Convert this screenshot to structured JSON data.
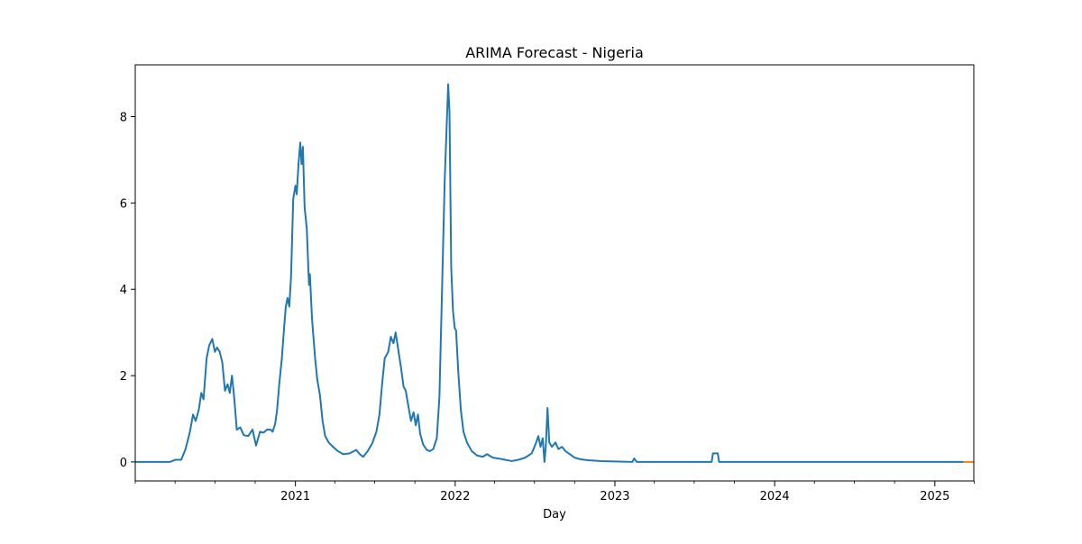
{
  "chart_data": {
    "type": "line",
    "title": "ARIMA Forecast - Nigeria",
    "xlabel": "Day",
    "ylabel": "",
    "x_range": [
      "2020-01-01",
      "2025-03-31"
    ],
    "ylim": [
      -0.44,
      9.2
    ],
    "x_ticks": [
      {
        "date": "2021-01-01",
        "label": "2021"
      },
      {
        "date": "2022-01-01",
        "label": "2022"
      },
      {
        "date": "2023-01-01",
        "label": "2023"
      },
      {
        "date": "2024-01-01",
        "label": "2024"
      },
      {
        "date": "2025-01-01",
        "label": "2025"
      }
    ],
    "x_minor_ticks": [
      "2020-01-01",
      "2020-04-01",
      "2020-07-01",
      "2020-10-01",
      "2021-04-01",
      "2021-07-01",
      "2021-10-01",
      "2022-04-01",
      "2022-07-01",
      "2022-10-01",
      "2023-04-01",
      "2023-07-01",
      "2023-10-01",
      "2024-04-01",
      "2024-07-01",
      "2024-10-01",
      "2025-04-01"
    ],
    "y_ticks": [
      0,
      2,
      4,
      6,
      8
    ],
    "grid": false,
    "series": [
      {
        "name": "",
        "color": "#1f77b4",
        "points": [
          [
            "2020-01-01",
            0.0
          ],
          [
            "2020-03-20",
            0.0
          ],
          [
            "2020-04-01",
            0.05
          ],
          [
            "2020-04-15",
            0.05
          ],
          [
            "2020-04-25",
            0.3
          ],
          [
            "2020-05-05",
            0.7
          ],
          [
            "2020-05-12",
            1.1
          ],
          [
            "2020-05-18",
            0.95
          ],
          [
            "2020-05-25",
            1.2
          ],
          [
            "2020-05-31",
            1.6
          ],
          [
            "2020-06-05",
            1.45
          ],
          [
            "2020-06-12",
            2.4
          ],
          [
            "2020-06-18",
            2.7
          ],
          [
            "2020-06-25",
            2.85
          ],
          [
            "2020-07-01",
            2.55
          ],
          [
            "2020-07-06",
            2.65
          ],
          [
            "2020-07-12",
            2.55
          ],
          [
            "2020-07-18",
            2.3
          ],
          [
            "2020-07-24",
            1.65
          ],
          [
            "2020-07-30",
            1.8
          ],
          [
            "2020-08-04",
            1.6
          ],
          [
            "2020-08-09",
            2.0
          ],
          [
            "2020-08-14",
            1.5
          ],
          [
            "2020-08-20",
            0.75
          ],
          [
            "2020-08-28",
            0.8
          ],
          [
            "2020-09-05",
            0.62
          ],
          [
            "2020-09-15",
            0.6
          ],
          [
            "2020-09-25",
            0.75
          ],
          [
            "2020-10-03",
            0.38
          ],
          [
            "2020-10-12",
            0.7
          ],
          [
            "2020-10-20",
            0.68
          ],
          [
            "2020-10-28",
            0.75
          ],
          [
            "2020-11-05",
            0.75
          ],
          [
            "2020-11-10",
            0.7
          ],
          [
            "2020-11-16",
            0.9
          ],
          [
            "2020-11-20",
            1.2
          ],
          [
            "2020-11-25",
            1.8
          ],
          [
            "2020-12-01",
            2.4
          ],
          [
            "2020-12-06",
            3.1
          ],
          [
            "2020-12-10",
            3.6
          ],
          [
            "2020-12-14",
            3.8
          ],
          [
            "2020-12-18",
            3.6
          ],
          [
            "2020-12-22",
            4.3
          ],
          [
            "2020-12-27",
            6.1
          ],
          [
            "2021-01-01",
            6.4
          ],
          [
            "2021-01-04",
            6.2
          ],
          [
            "2021-01-08",
            6.9
          ],
          [
            "2021-01-12",
            7.4
          ],
          [
            "2021-01-15",
            6.9
          ],
          [
            "2021-01-18",
            7.3
          ],
          [
            "2021-01-22",
            5.9
          ],
          [
            "2021-01-27",
            5.4
          ],
          [
            "2021-02-01",
            4.1
          ],
          [
            "2021-02-03",
            4.35
          ],
          [
            "2021-02-08",
            3.3
          ],
          [
            "2021-02-15",
            2.4
          ],
          [
            "2021-02-20",
            1.9
          ],
          [
            "2021-02-26",
            1.55
          ],
          [
            "2021-03-04",
            0.95
          ],
          [
            "2021-03-10",
            0.6
          ],
          [
            "2021-03-18",
            0.45
          ],
          [
            "2021-03-28",
            0.35
          ],
          [
            "2021-04-08",
            0.25
          ],
          [
            "2021-04-20",
            0.18
          ],
          [
            "2021-05-05",
            0.2
          ],
          [
            "2021-05-20",
            0.28
          ],
          [
            "2021-05-28",
            0.18
          ],
          [
            "2021-06-05",
            0.12
          ],
          [
            "2021-06-15",
            0.25
          ],
          [
            "2021-06-25",
            0.42
          ],
          [
            "2021-07-05",
            0.7
          ],
          [
            "2021-07-12",
            1.1
          ],
          [
            "2021-07-18",
            1.8
          ],
          [
            "2021-07-24",
            2.4
          ],
          [
            "2021-08-01",
            2.55
          ],
          [
            "2021-08-07",
            2.9
          ],
          [
            "2021-08-13",
            2.75
          ],
          [
            "2021-08-18",
            3.0
          ],
          [
            "2021-08-24",
            2.6
          ],
          [
            "2021-08-30",
            2.2
          ],
          [
            "2021-09-05",
            1.75
          ],
          [
            "2021-09-10",
            1.65
          ],
          [
            "2021-09-16",
            1.3
          ],
          [
            "2021-09-22",
            0.95
          ],
          [
            "2021-09-28",
            1.15
          ],
          [
            "2021-10-03",
            0.85
          ],
          [
            "2021-10-08",
            1.1
          ],
          [
            "2021-10-13",
            0.65
          ],
          [
            "2021-10-20",
            0.4
          ],
          [
            "2021-10-28",
            0.28
          ],
          [
            "2021-11-04",
            0.25
          ],
          [
            "2021-11-12",
            0.3
          ],
          [
            "2021-11-20",
            0.55
          ],
          [
            "2021-11-26",
            1.5
          ],
          [
            "2021-12-02",
            4.0
          ],
          [
            "2021-12-08",
            6.5
          ],
          [
            "2021-12-13",
            7.9
          ],
          [
            "2021-12-16",
            8.75
          ],
          [
            "2021-12-19",
            8.1
          ],
          [
            "2021-12-23",
            4.5
          ],
          [
            "2021-12-27",
            3.5
          ],
          [
            "2021-12-31",
            3.1
          ],
          [
            "2022-01-03",
            3.05
          ],
          [
            "2022-01-08",
            2.1
          ],
          [
            "2022-01-14",
            1.2
          ],
          [
            "2022-01-20",
            0.7
          ],
          [
            "2022-01-28",
            0.45
          ],
          [
            "2022-02-08",
            0.25
          ],
          [
            "2022-02-20",
            0.15
          ],
          [
            "2022-03-05",
            0.12
          ],
          [
            "2022-03-15",
            0.18
          ],
          [
            "2022-03-28",
            0.1
          ],
          [
            "2022-04-10",
            0.08
          ],
          [
            "2022-04-25",
            0.05
          ],
          [
            "2022-05-10",
            0.02
          ],
          [
            "2022-05-25",
            0.05
          ],
          [
            "2022-06-10",
            0.1
          ],
          [
            "2022-06-25",
            0.2
          ],
          [
            "2022-07-05",
            0.45
          ],
          [
            "2022-07-10",
            0.6
          ],
          [
            "2022-07-15",
            0.35
          ],
          [
            "2022-07-20",
            0.55
          ],
          [
            "2022-07-24",
            0.0
          ],
          [
            "2022-07-27",
            0.35
          ],
          [
            "2022-07-31",
            1.25
          ],
          [
            "2022-08-04",
            0.45
          ],
          [
            "2022-08-10",
            0.35
          ],
          [
            "2022-08-18",
            0.45
          ],
          [
            "2022-08-25",
            0.3
          ],
          [
            "2022-09-02",
            0.35
          ],
          [
            "2022-09-10",
            0.25
          ],
          [
            "2022-09-20",
            0.18
          ],
          [
            "2022-10-01",
            0.1
          ],
          [
            "2022-10-15",
            0.06
          ],
          [
            "2022-11-01",
            0.04
          ],
          [
            "2022-12-01",
            0.02
          ],
          [
            "2023-01-01",
            0.01
          ],
          [
            "2023-02-10",
            0.0
          ],
          [
            "2023-02-14",
            0.08
          ],
          [
            "2023-02-20",
            0.0
          ],
          [
            "2023-03-10",
            0.0
          ],
          [
            "2023-08-10",
            0.0
          ],
          [
            "2023-08-13",
            0.2
          ],
          [
            "2023-08-24",
            0.2
          ],
          [
            "2023-08-27",
            0.0
          ],
          [
            "2024-01-01",
            0.0
          ],
          [
            "2025-03-08",
            0.0
          ]
        ]
      },
      {
        "name": "",
        "color": "#ff7f0e",
        "points": [
          [
            "2025-03-08",
            0.0
          ],
          [
            "2025-03-31",
            0.0
          ]
        ]
      }
    ]
  }
}
